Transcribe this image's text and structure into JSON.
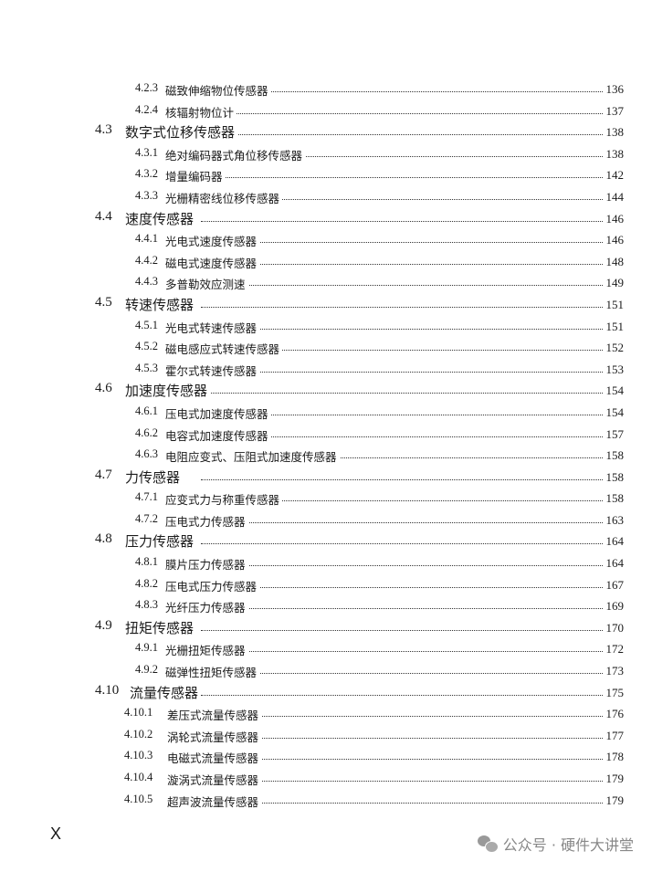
{
  "toc": [
    {
      "level": 2,
      "number": "4.2.3",
      "title": "磁致伸缩物位传感器",
      "page": "136"
    },
    {
      "level": 2,
      "number": "4.2.4",
      "title": "核辐射物位计",
      "page": "137"
    },
    {
      "level": 1,
      "number": "4.3",
      "title": "数字式位移传感器",
      "page": "138"
    },
    {
      "level": 2,
      "number": "4.3.1",
      "title": "绝对编码器式角位移传感器",
      "page": "138"
    },
    {
      "level": 2,
      "number": "4.3.2",
      "title": "增量编码器",
      "page": "142"
    },
    {
      "level": 2,
      "number": "4.3.3",
      "title": "光栅精密线位移传感器",
      "page": "144"
    },
    {
      "level": 1,
      "number": "4.4",
      "title": "速度传感器",
      "page": "146"
    },
    {
      "level": 2,
      "number": "4.4.1",
      "title": "光电式速度传感器",
      "page": "146"
    },
    {
      "level": 2,
      "number": "4.4.2",
      "title": "磁电式速度传感器",
      "page": "148"
    },
    {
      "level": 2,
      "number": "4.4.3",
      "title": "多普勒效应测速",
      "page": "149"
    },
    {
      "level": 1,
      "number": "4.5",
      "title": "转速传感器",
      "page": "151"
    },
    {
      "level": 2,
      "number": "4.5.1",
      "title": "光电式转速传感器",
      "page": "151"
    },
    {
      "level": 2,
      "number": "4.5.2",
      "title": "磁电感应式转速传感器",
      "page": "152"
    },
    {
      "level": 2,
      "number": "4.5.3",
      "title": "霍尔式转速传感器",
      "page": "153"
    },
    {
      "level": 1,
      "number": "4.6",
      "title": "加速度传感器",
      "page": "154"
    },
    {
      "level": 2,
      "number": "4.6.1",
      "title": "压电式加速度传感器",
      "page": "154"
    },
    {
      "level": 2,
      "number": "4.6.2",
      "title": "电容式加速度传感器",
      "page": "157"
    },
    {
      "level": 2,
      "number": "4.6.3",
      "title": "电阻应变式、压阻式加速度传感器",
      "page": "158"
    },
    {
      "level": 1,
      "number": "4.7",
      "title": "力传感器",
      "page": "158"
    },
    {
      "level": 2,
      "number": "4.7.1",
      "title": "应变式力与称重传感器",
      "page": "158"
    },
    {
      "level": 2,
      "number": "4.7.2",
      "title": "压电式力传感器",
      "page": "163"
    },
    {
      "level": 1,
      "number": "4.8",
      "title": "压力传感器",
      "page": "164"
    },
    {
      "level": 2,
      "number": "4.8.1",
      "title": "膜片压力传感器",
      "page": "164"
    },
    {
      "level": 2,
      "number": "4.8.2",
      "title": "压电式压力传感器",
      "page": "167"
    },
    {
      "level": 2,
      "number": "4.8.3",
      "title": "光纤压力传感器",
      "page": "169"
    },
    {
      "level": 1,
      "number": "4.9",
      "title": "扭矩传感器",
      "page": "170"
    },
    {
      "level": 2,
      "number": "4.9.1",
      "title": "光栅扭矩传感器",
      "page": "172"
    },
    {
      "level": 2,
      "number": "4.9.2",
      "title": "磁弹性扭矩传感器",
      "page": "173"
    },
    {
      "level": 1,
      "number": "4.10",
      "title": "流量传感器",
      "page": "175"
    },
    {
      "level": 2,
      "number": "4.10.1",
      "title": "差压式流量传感器",
      "page": "176"
    },
    {
      "level": 2,
      "number": "4.10.2",
      "title": "涡轮式流量传感器",
      "page": "177"
    },
    {
      "level": 2,
      "number": "4.10.3",
      "title": "电磁式流量传感器",
      "page": "178"
    },
    {
      "level": 2,
      "number": "4.10.4",
      "title": "漩涡式流量传感器",
      "page": "179"
    },
    {
      "level": 2,
      "number": "4.10.5",
      "title": "超声波流量传感器",
      "page": "179"
    }
  ],
  "footer": {
    "mark": "X"
  },
  "watermark": {
    "icon": "wechat-icon",
    "text": "公众号 · 硬件大讲堂"
  }
}
